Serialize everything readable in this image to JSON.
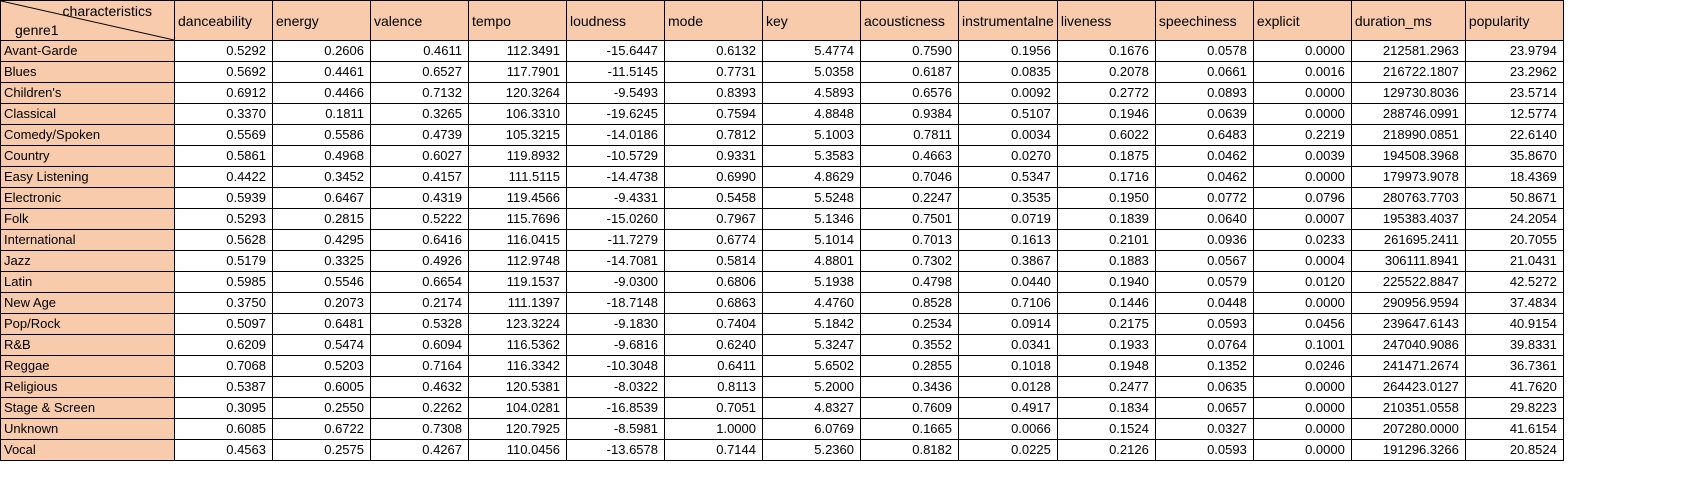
{
  "colors": {
    "header_fill": "#f8cbad",
    "grid_line": "#000000"
  },
  "corner": {
    "top_label": "characteristics",
    "bottom_label": "genre1"
  },
  "columns": [
    "danceability",
    "energy",
    "valence",
    "tempo",
    "loudness",
    "mode",
    "key",
    "acousticness",
    "instrumentalne",
    "liveness",
    "speechiness",
    "explicit",
    "duration_ms",
    "popularity"
  ],
  "rows": [
    {
      "genre": "Avant-Garde",
      "values": [
        "0.5292",
        "0.2606",
        "0.4611",
        "112.3491",
        "-15.6447",
        "0.6132",
        "5.4774",
        "0.7590",
        "0.1956",
        "0.1676",
        "0.0578",
        "0.0000",
        "212581.2963",
        "23.9794"
      ]
    },
    {
      "genre": "Blues",
      "values": [
        "0.5692",
        "0.4461",
        "0.6527",
        "117.7901",
        "-11.5145",
        "0.7731",
        "5.0358",
        "0.6187",
        "0.0835",
        "0.2078",
        "0.0661",
        "0.0016",
        "216722.1807",
        "23.2962"
      ]
    },
    {
      "genre": "Children's",
      "values": [
        "0.6912",
        "0.4466",
        "0.7132",
        "120.3264",
        "-9.5493",
        "0.8393",
        "4.5893",
        "0.6576",
        "0.0092",
        "0.2772",
        "0.0893",
        "0.0000",
        "129730.8036",
        "23.5714"
      ]
    },
    {
      "genre": "Classical",
      "values": [
        "0.3370",
        "0.1811",
        "0.3265",
        "106.3310",
        "-19.6245",
        "0.7594",
        "4.8848",
        "0.9384",
        "0.5107",
        "0.1946",
        "0.0639",
        "0.0000",
        "288746.0991",
        "12.5774"
      ]
    },
    {
      "genre": "Comedy/Spoken",
      "values": [
        "0.5569",
        "0.5586",
        "0.4739",
        "105.3215",
        "-14.0186",
        "0.7812",
        "5.1003",
        "0.7811",
        "0.0034",
        "0.6022",
        "0.6483",
        "0.2219",
        "218990.0851",
        "22.6140"
      ]
    },
    {
      "genre": "Country",
      "values": [
        "0.5861",
        "0.4968",
        "0.6027",
        "119.8932",
        "-10.5729",
        "0.9331",
        "5.3583",
        "0.4663",
        "0.0270",
        "0.1875",
        "0.0462",
        "0.0039",
        "194508.3968",
        "35.8670"
      ]
    },
    {
      "genre": "Easy Listening",
      "values": [
        "0.4422",
        "0.3452",
        "0.4157",
        "111.5115",
        "-14.4738",
        "0.6990",
        "4.8629",
        "0.7046",
        "0.5347",
        "0.1716",
        "0.0462",
        "0.0000",
        "179973.9078",
        "18.4369"
      ]
    },
    {
      "genre": "Electronic",
      "values": [
        "0.5939",
        "0.6467",
        "0.4319",
        "119.4566",
        "-9.4331",
        "0.5458",
        "5.5248",
        "0.2247",
        "0.3535",
        "0.1950",
        "0.0772",
        "0.0796",
        "280763.7703",
        "50.8671"
      ]
    },
    {
      "genre": "Folk",
      "values": [
        "0.5293",
        "0.2815",
        "0.5222",
        "115.7696",
        "-15.0260",
        "0.7967",
        "5.1346",
        "0.7501",
        "0.0719",
        "0.1839",
        "0.0640",
        "0.0007",
        "195383.4037",
        "24.2054"
      ]
    },
    {
      "genre": "International",
      "values": [
        "0.5628",
        "0.4295",
        "0.6416",
        "116.0415",
        "-11.7279",
        "0.6774",
        "5.1014",
        "0.7013",
        "0.1613",
        "0.2101",
        "0.0936",
        "0.0233",
        "261695.2411",
        "20.7055"
      ]
    },
    {
      "genre": "Jazz",
      "values": [
        "0.5179",
        "0.3325",
        "0.4926",
        "112.9748",
        "-14.7081",
        "0.5814",
        "4.8801",
        "0.7302",
        "0.3867",
        "0.1883",
        "0.0567",
        "0.0004",
        "306111.8941",
        "21.0431"
      ]
    },
    {
      "genre": "Latin",
      "values": [
        "0.5985",
        "0.5546",
        "0.6654",
        "119.1537",
        "-9.0300",
        "0.6806",
        "5.1938",
        "0.4798",
        "0.0440",
        "0.1940",
        "0.0579",
        "0.0120",
        "225522.8847",
        "42.5272"
      ]
    },
    {
      "genre": "New Age",
      "values": [
        "0.3750",
        "0.2073",
        "0.2174",
        "111.1397",
        "-18.7148",
        "0.6863",
        "4.4760",
        "0.8528",
        "0.7106",
        "0.1446",
        "0.0448",
        "0.0000",
        "290956.9594",
        "37.4834"
      ]
    },
    {
      "genre": "Pop/Rock",
      "values": [
        "0.5097",
        "0.6481",
        "0.5328",
        "123.3224",
        "-9.1830",
        "0.7404",
        "5.1842",
        "0.2534",
        "0.0914",
        "0.2175",
        "0.0593",
        "0.0456",
        "239647.6143",
        "40.9154"
      ]
    },
    {
      "genre": "R&B",
      "values": [
        "0.6209",
        "0.5474",
        "0.6094",
        "116.5362",
        "-9.6816",
        "0.6240",
        "5.3247",
        "0.3552",
        "0.0341",
        "0.1933",
        "0.0764",
        "0.1001",
        "247040.9086",
        "39.8331"
      ]
    },
    {
      "genre": "Reggae",
      "values": [
        "0.7068",
        "0.5203",
        "0.7164",
        "116.3342",
        "-10.3048",
        "0.6411",
        "5.6502",
        "0.2855",
        "0.1018",
        "0.1948",
        "0.1352",
        "0.0246",
        "241471.2674",
        "36.7361"
      ]
    },
    {
      "genre": "Religious",
      "values": [
        "0.5387",
        "0.6005",
        "0.4632",
        "120.5381",
        "-8.0322",
        "0.8113",
        "5.2000",
        "0.3436",
        "0.0128",
        "0.2477",
        "0.0635",
        "0.0000",
        "264423.0127",
        "41.7620"
      ]
    },
    {
      "genre": "Stage & Screen",
      "values": [
        "0.3095",
        "0.2550",
        "0.2262",
        "104.0281",
        "-16.8539",
        "0.7051",
        "4.8327",
        "0.7609",
        "0.4917",
        "0.1834",
        "0.0657",
        "0.0000",
        "210351.0558",
        "29.8223"
      ]
    },
    {
      "genre": "Unknown",
      "values": [
        "0.6085",
        "0.6722",
        "0.7308",
        "120.7925",
        "-8.5981",
        "1.0000",
        "6.0769",
        "0.1665",
        "0.0066",
        "0.1524",
        "0.0327",
        "0.0000",
        "207280.0000",
        "41.6154"
      ]
    },
    {
      "genre": "Vocal",
      "values": [
        "0.4563",
        "0.2575",
        "0.4267",
        "110.0456",
        "-13.6578",
        "0.7144",
        "5.2360",
        "0.8182",
        "0.0225",
        "0.2126",
        "0.0593",
        "0.0000",
        "191296.3266",
        "20.8524"
      ]
    }
  ]
}
